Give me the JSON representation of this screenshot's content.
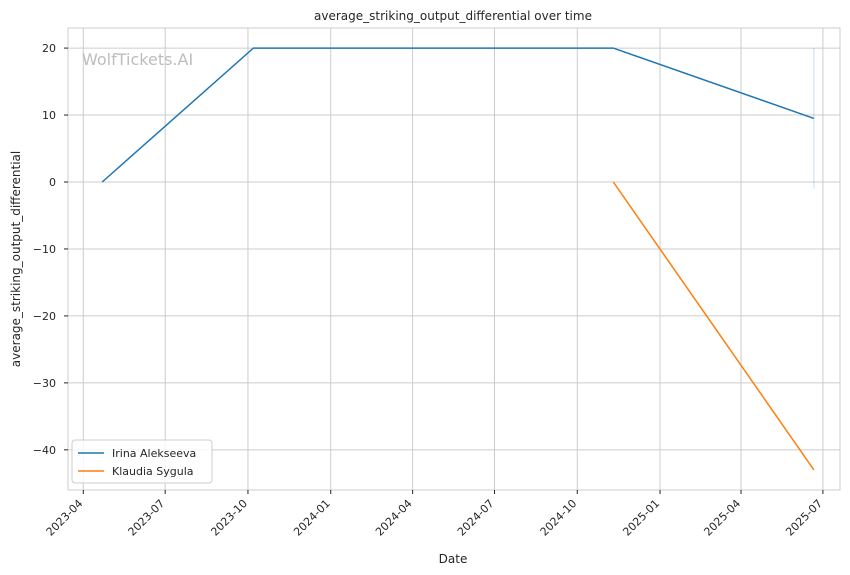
{
  "chart_data": {
    "type": "line",
    "title": "average_striking_output_differential over time",
    "xlabel": "Date",
    "ylabel": "average_striking_output_differential",
    "watermark": "WolfTickets.AI",
    "x_ticks": [
      "2023-04",
      "2023-07",
      "2023-10",
      "2024-01",
      "2024-04",
      "2024-07",
      "2024-10",
      "2025-01",
      "2025-04",
      "2025-07"
    ],
    "y_ticks": [
      "20",
      "10",
      "0",
      "−10",
      "−20",
      "−30",
      "−40"
    ],
    "ylim": [
      -46,
      23
    ],
    "xlim": [
      "2023-03-15",
      "2025-07-20"
    ],
    "grid": true,
    "legend_position": "lower-left",
    "series": [
      {
        "name": "Irina Alekseeva",
        "color": "#1f77b4",
        "x": [
          "2023-04-22",
          "2023-10-07",
          "2024-11-10",
          "2025-06-21"
        ],
        "y": [
          0,
          20,
          20,
          9.5
        ]
      },
      {
        "name": "Klaudia Sygula",
        "color": "#ff7f0e",
        "x": [
          "2024-11-10",
          "2025-06-21"
        ],
        "y": [
          0,
          -43
        ]
      }
    ]
  }
}
